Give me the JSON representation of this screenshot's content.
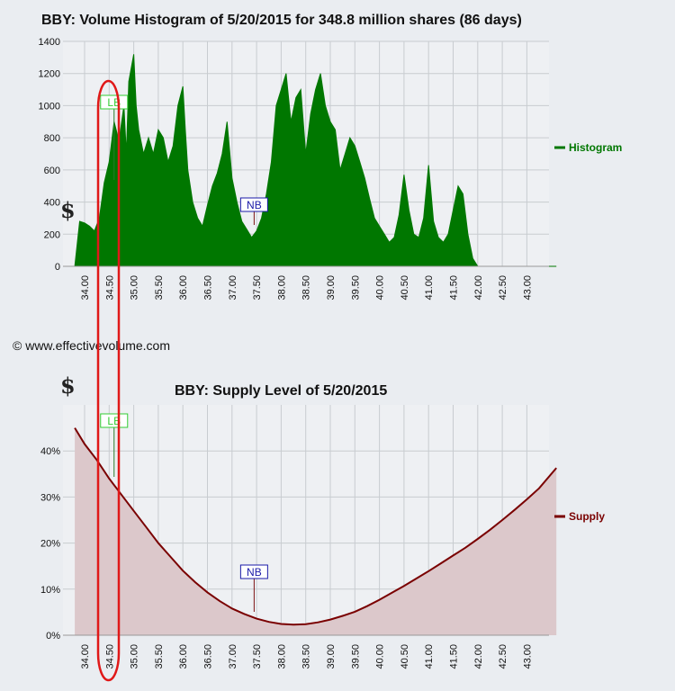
{
  "colors": {
    "histogram": "#007700",
    "supply_line": "#7a0000",
    "supply_fill": "#dcc8cb",
    "grid": "#c8ccd0",
    "lb": "#33cc33",
    "nb": "#1a1aa8",
    "highlight": "#e01818"
  },
  "copyright": "© www.effectivevolume.com",
  "currency_symbol": "$",
  "chart_data": [
    {
      "type": "area",
      "title": "BBY: Volume Histogram of 5/20/2015 for 348.8 million shares (86 days)",
      "x_ticks": [
        "34.00",
        "34.50",
        "35.00",
        "35.50",
        "36.00",
        "36.50",
        "37.00",
        "37.50",
        "38.00",
        "38.50",
        "39.00",
        "39.50",
        "40.00",
        "40.50",
        "41.00",
        "41.50",
        "42.00",
        "42.50",
        "43.00"
      ],
      "y_ticks": [
        "0",
        "200",
        "400",
        "600",
        "800",
        "1000",
        "1200",
        "1400"
      ],
      "xlim": [
        33.8,
        43.6
      ],
      "ylim": [
        0,
        1400
      ],
      "grid": true,
      "legend_position": "right",
      "series": [
        {
          "name": "Histogram",
          "x": [
            33.8,
            33.9,
            34.0,
            34.1,
            34.2,
            34.3,
            34.4,
            34.5,
            34.6,
            34.7,
            34.8,
            34.85,
            34.9,
            35.0,
            35.05,
            35.1,
            35.2,
            35.3,
            35.4,
            35.5,
            35.6,
            35.7,
            35.8,
            35.9,
            36.0,
            36.05,
            36.1,
            36.2,
            36.3,
            36.4,
            36.5,
            36.6,
            36.7,
            36.8,
            36.9,
            37.0,
            37.1,
            37.2,
            37.3,
            37.4,
            37.5,
            37.6,
            37.7,
            37.8,
            37.9,
            38.0,
            38.1,
            38.2,
            38.3,
            38.4,
            38.5,
            38.6,
            38.7,
            38.8,
            38.9,
            39.0,
            39.1,
            39.2,
            39.3,
            39.4,
            39.5,
            39.6,
            39.7,
            39.8,
            39.9,
            40.0,
            40.1,
            40.2,
            40.3,
            40.4,
            40.5,
            40.6,
            40.7,
            40.8,
            40.9,
            41.0,
            41.1,
            41.2,
            41.3,
            41.4,
            41.5,
            41.6,
            41.7,
            41.8,
            41.9,
            42.0,
            42.5,
            43.0,
            43.6
          ],
          "y": [
            0,
            280,
            270,
            250,
            220,
            300,
            520,
            650,
            900,
            780,
            1000,
            700,
            1150,
            1320,
            1000,
            850,
            700,
            800,
            700,
            850,
            800,
            650,
            750,
            1000,
            1120,
            850,
            600,
            400,
            300,
            250,
            380,
            500,
            580,
            700,
            900,
            550,
            400,
            280,
            230,
            180,
            220,
            300,
            450,
            650,
            1000,
            1100,
            1200,
            900,
            1050,
            1100,
            700,
            950,
            1100,
            1200,
            1000,
            900,
            850,
            600,
            700,
            800,
            750,
            650,
            550,
            420,
            300,
            250,
            200,
            150,
            180,
            320,
            570,
            350,
            200,
            180,
            300,
            630,
            280,
            180,
            150,
            200,
            350,
            500,
            450,
            200,
            50,
            0,
            0,
            0,
            0
          ]
        }
      ],
      "markers": [
        {
          "label": "LB",
          "x": 34.6,
          "y": 1000
        },
        {
          "label": "NB",
          "x": 37.45,
          "y": 420
        }
      ]
    },
    {
      "type": "area",
      "title": "BBY: Supply Level of 5/20/2015",
      "x_ticks": [
        "34.00",
        "34.50",
        "35.00",
        "35.50",
        "36.00",
        "36.50",
        "37.00",
        "37.50",
        "38.00",
        "38.50",
        "39.00",
        "39.50",
        "40.00",
        "40.50",
        "41.00",
        "41.50",
        "42.00",
        "42.50",
        "43.00"
      ],
      "y_ticks": [
        "0%",
        "10%",
        "20%",
        "30%",
        "40%"
      ],
      "xlim": [
        33.8,
        43.6
      ],
      "ylim": [
        0,
        50
      ],
      "grid": true,
      "legend_position": "right",
      "series": [
        {
          "name": "Supply",
          "x": [
            33.8,
            34.0,
            34.25,
            34.5,
            34.75,
            35.0,
            35.25,
            35.5,
            35.75,
            36.0,
            36.25,
            36.5,
            36.75,
            37.0,
            37.25,
            37.5,
            37.75,
            38.0,
            38.25,
            38.5,
            38.75,
            39.0,
            39.25,
            39.5,
            39.75,
            40.0,
            40.25,
            40.5,
            40.75,
            41.0,
            41.25,
            41.5,
            41.75,
            42.0,
            42.25,
            42.5,
            42.75,
            43.0,
            43.25,
            43.6
          ],
          "y": [
            45,
            41.5,
            38,
            34,
            30.5,
            27,
            23.5,
            20,
            17,
            14,
            11.5,
            9.3,
            7.4,
            5.8,
            4.6,
            3.6,
            2.9,
            2.45,
            2.3,
            2.4,
            2.8,
            3.4,
            4.2,
            5.1,
            6.3,
            7.7,
            9.2,
            10.7,
            12.3,
            13.9,
            15.6,
            17.3,
            19.0,
            20.9,
            22.9,
            25.0,
            27.2,
            29.5,
            31.9,
            36.3
          ]
        }
      ],
      "markers": [
        {
          "label": "LB",
          "x": 34.6,
          "y": 45
        },
        {
          "label": "NB",
          "x": 37.45,
          "y": 13
        }
      ]
    }
  ]
}
